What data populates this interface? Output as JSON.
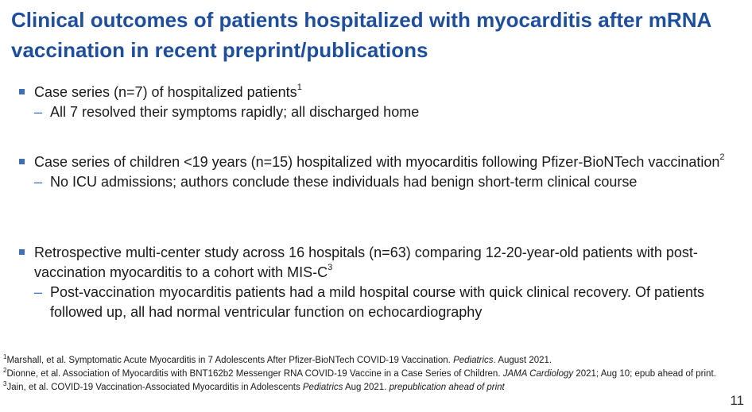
{
  "slide": {
    "title": "Clinical outcomes of patients hospitalized with myocarditis after mRNA vaccination in recent preprint/publications",
    "bullets": [
      {
        "text": "Case series (n=7) of hospitalized patients",
        "ref": "1",
        "sub": "All 7 resolved their symptoms rapidly; all discharged home"
      },
      {
        "text": "Case series of children <19 years (n=15) hospitalized with myocarditis following Pfizer-BioNTech vaccination",
        "ref": "2",
        "sub": "No ICU admissions; authors conclude these individuals had benign short-term clinical course"
      },
      {
        "text": "Retrospective multi-center study across 16 hospitals (n=63) comparing 12-20-year-old patients with post-vaccination myocarditis to a cohort with MIS-C",
        "ref": "3",
        "sub": "Post-vaccination myocarditis patients had a mild hospital course with quick clinical recovery. Of patients followed up, all had normal ventricular function on echocardiography"
      }
    ],
    "footnotes": [
      {
        "num": "1",
        "text": "Marshall, et al. Symptomatic Acute Myocarditis in 7 Adolescents After Pfizer-BioNTech COVID-19 Vaccination. ",
        "journal": "Pediatrics",
        "tail": ". August 2021."
      },
      {
        "num": "2",
        "text": "Dionne, et al. Association of Myocarditis with BNT162b2 Messenger RNA COVID-19 Vaccine in a Case Series of Children. ",
        "journal": "JAMA Cardiology",
        "tail": " 2021; Aug 10; epub ahead of print."
      },
      {
        "num": "3",
        "text": "Jain, et al. COVID-19 Vaccination-Associated Myocarditis in Adolescents ",
        "journal": "Pediatrics",
        "tail": " Aug 2021. ",
        "tail_italic": "prepublication ahead of print"
      }
    ],
    "page_number": "11"
  }
}
